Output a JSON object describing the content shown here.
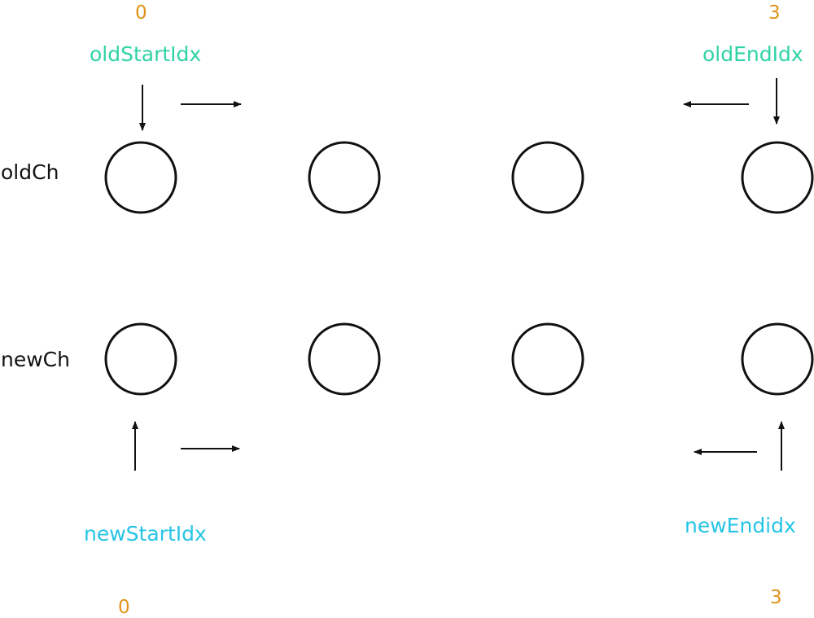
{
  "rows": {
    "old": "oldCh",
    "new": "newCh"
  },
  "pointers": {
    "old_start": {
      "label": "oldStartIdx",
      "index": "0"
    },
    "old_end": {
      "label": "oldEndIdx",
      "index": "3"
    },
    "new_start": {
      "label": "newStartIdx",
      "index": "0"
    },
    "new_end": {
      "label": "newEndidx",
      "index": "3"
    }
  },
  "colors": {
    "index": "#e0931c",
    "old_pointer": "#2fd3a5",
    "new_pointer": "#26c4e6",
    "stroke": "#111111"
  },
  "nodes_per_row": 4
}
